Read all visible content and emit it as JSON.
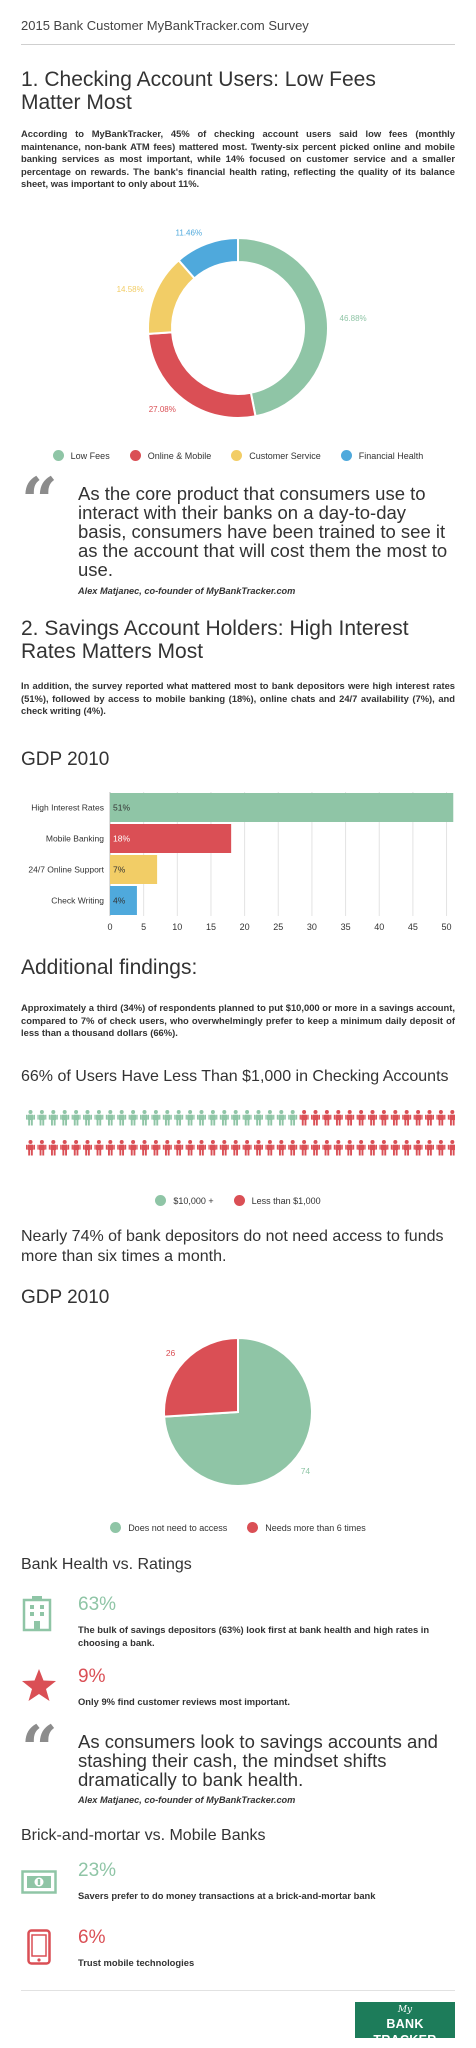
{
  "header": {
    "title": "2015 Bank Customer MyBankTracker.com Survey"
  },
  "colors": {
    "green": "#8fc5a6",
    "red": "#da4f55",
    "yellow": "#f2cd66",
    "blue": "#4fa9dc",
    "brand": "#1d7c5a"
  },
  "section1": {
    "title": "1. Checking Account Users: Low Fees Matter Most",
    "body": "According to MyBankTracker, 45% of checking account users said low fees (monthly maintenance, non-bank ATM fees) mattered most. Twenty-six percent picked online and mobile banking services as most important, while 14% focused on customer service and a smaller percentage on rewards. The bank's financial health rating, reflecting the quality of its balance sheet, was important to only about 11%."
  },
  "quote1": {
    "text": "As the core product that consumers use to interact with their banks on a day-to-day basis, consumers have been trained to see it as the account that will cost them the most to use.",
    "attribution": "Alex Matjanec, co-founder of MyBankTracker.com"
  },
  "section2": {
    "title": "2. Savings Account Holders: High Interest Rates Matters Most",
    "body": "In addition, the survey reported what mattered most to bank depositors were high interest rates (51%), followed by access to mobile banking (18%), online chats and 24/7 availability (7%), and check writing (4%)."
  },
  "additional": {
    "title": "Additional findings:",
    "body": "Approximately a third (34%) of respondents planned to put $10,000 or more in a savings account, compared to 7% of check users, who overwhelmingly prefer to keep a minimum daily deposit of less than a thousand dollars (66%).",
    "pictogram_title": "66% of Users Have Less Than $1,000 in Checking Accounts",
    "pictogram_legend": [
      "$10,000 +",
      "Less than $1,000"
    ],
    "access_text": "Nearly 74% of bank depositors do not need access to funds more than six times a month."
  },
  "health": {
    "title": "Bank Health vs. Ratings",
    "items": [
      {
        "pct": "63%",
        "text": "The bulk of savings depositors (63%) look first at bank health and high rates in choosing a bank.",
        "icon": "bank-building-icon",
        "color": "#8fc5a6"
      },
      {
        "pct": "9%",
        "text": "Only 9% find customer reviews most important.",
        "icon": "star-icon",
        "color": "#da4f55"
      }
    ]
  },
  "quote2": {
    "text": "As consumers look to savings accounts and stashing their cash, the mindset shifts dramatically to bank health.",
    "attribution": "Alex Matjanec, co-founder of MyBankTracker.com"
  },
  "brick": {
    "title": "Brick-and-mortar vs. Mobile Banks",
    "items": [
      {
        "pct": "23%",
        "text": "Savers prefer to do money transactions at a brick-and-mortar bank",
        "icon": "banknote-icon",
        "color": "#8fc5a6"
      },
      {
        "pct": "6%",
        "text": "Trust mobile technologies",
        "icon": "mobile-phone-icon",
        "color": "#da4f55"
      }
    ]
  },
  "logo": {
    "small": "My",
    "main": "BANK TRACKER"
  },
  "chart_data": [
    {
      "type": "pie",
      "variant": "donut",
      "categories": [
        "Low Fees",
        "Online & Mobile",
        "Customer Service",
        "Financial Health"
      ],
      "values": [
        46.88,
        27.08,
        14.58,
        11.46
      ],
      "labels": [
        "46.88%",
        "27.08%",
        "14.58%",
        "11.46%"
      ],
      "colors": [
        "#8fc5a6",
        "#da4f55",
        "#f2cd66",
        "#4fa9dc"
      ],
      "legend": "bottom"
    },
    {
      "type": "bar",
      "orientation": "horizontal",
      "title": "GDP 2010",
      "categories": [
        "High Interest Rates",
        "Mobile Banking",
        "24/7 Online Support",
        "Check Writing"
      ],
      "values": [
        51,
        18,
        7,
        4
      ],
      "labels": [
        "51%",
        "18%",
        "7%",
        "4%"
      ],
      "colors": [
        "#8fc5a6",
        "#da4f55",
        "#f2cd66",
        "#4fa9dc"
      ],
      "xlim": [
        0,
        52
      ],
      "xticks": [
        0,
        5,
        10,
        15,
        20,
        25,
        30,
        35,
        40,
        45,
        50
      ],
      "grid": true
    },
    {
      "type": "table",
      "variant": "pictogram",
      "rows": [
        {
          "green": 24,
          "red": 14
        },
        {
          "green": 0,
          "red": 38
        }
      ],
      "categories": [
        "$10,000 +",
        "Less than $1,000"
      ],
      "colors": [
        "#8fc5a6",
        "#da4f55"
      ],
      "legend": "bottom"
    },
    {
      "type": "pie",
      "title": "GDP 2010",
      "categories": [
        "Does not need to access",
        "Needs more than 6 times"
      ],
      "values": [
        74,
        26
      ],
      "labels": [
        "74",
        "26"
      ],
      "colors": [
        "#8fc5a6",
        "#da4f55"
      ],
      "legend": "bottom"
    }
  ]
}
